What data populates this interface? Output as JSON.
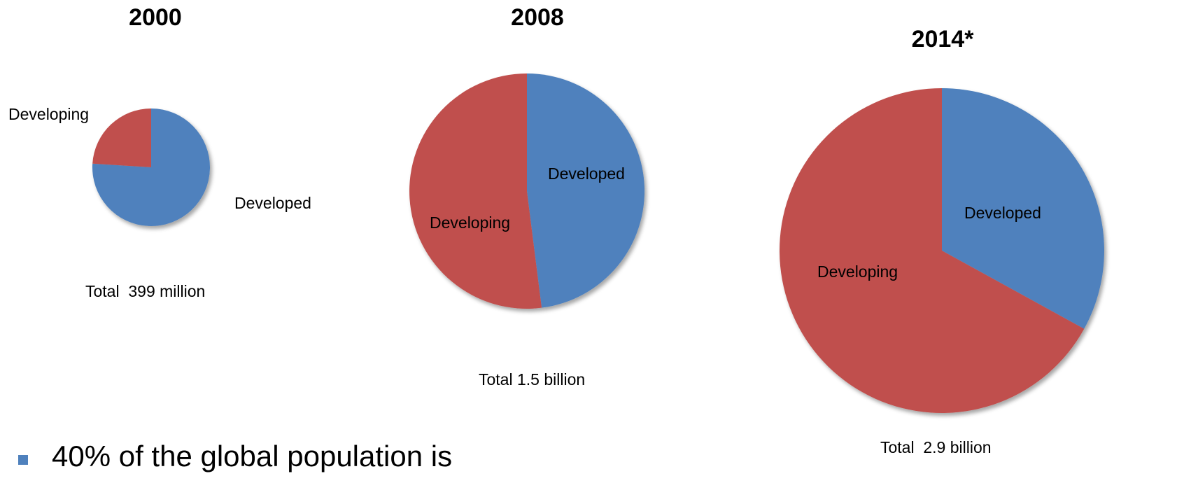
{
  "colors": {
    "developed": "#4f81bd",
    "developing": "#c0504d"
  },
  "chart_data": [
    {
      "type": "pie",
      "title": "2000",
      "total_label": "Total  399 million",
      "total": 399,
      "total_unit": "million",
      "slices": [
        {
          "label": "Developed",
          "value": 0.76,
          "color": "#4f81bd"
        },
        {
          "label": "Developing",
          "value": 0.24,
          "color": "#c0504d"
        }
      ]
    },
    {
      "type": "pie",
      "title": "2008",
      "total_label": "Total 1.5 billion",
      "total": 1.5,
      "total_unit": "billion",
      "slices": [
        {
          "label": "Developed",
          "value": 0.48,
          "color": "#4f81bd"
        },
        {
          "label": "Developing",
          "value": 0.52,
          "color": "#c0504d"
        }
      ]
    },
    {
      "type": "pie",
      "title": "2014*",
      "total_label": "Total  2.9 billion",
      "total": 2.9,
      "total_unit": "billion",
      "slices": [
        {
          "label": "Developed",
          "value": 0.33,
          "color": "#4f81bd"
        },
        {
          "label": "Developing",
          "value": 0.67,
          "color": "#c0504d"
        }
      ]
    }
  ],
  "bullet": {
    "text": "40% of the global population is"
  }
}
